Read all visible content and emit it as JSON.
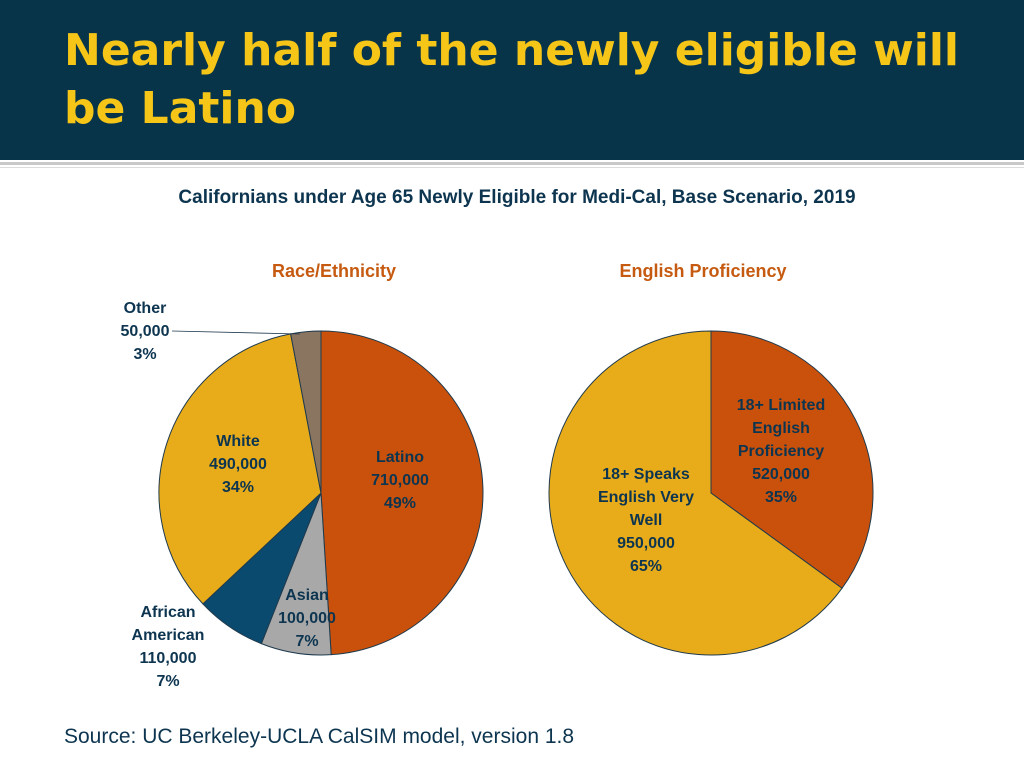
{
  "slide": {
    "title": "Nearly half of the newly eligible will be Latino",
    "subtitle": "Californians under Age 65 Newly Eligible for Medi-Cal, Base Scenario, 2019",
    "source": "Source: UC Berkeley-UCLA CalSIM model, version 1.8"
  },
  "colors": {
    "title_bar": "#08344a",
    "title_text": "#f5c518",
    "latino": "#c9510c",
    "white": "#e8ac1a",
    "asian": "#a8a8a8",
    "african_american": "#0b4a6f",
    "other": "#8a7560",
    "limited_english": "#c9510c",
    "speaks_english": "#e8ac1a"
  },
  "chart_data": [
    {
      "type": "pie",
      "title": "Race/Ethnicity",
      "slices": [
        {
          "key": "latino",
          "lines": [
            "Latino",
            "710,000",
            "49%"
          ],
          "value": 710000,
          "percent": 49
        },
        {
          "key": "asian",
          "lines": [
            "Asian",
            "100,000",
            "7%"
          ],
          "value": 100000,
          "percent": 7
        },
        {
          "key": "african_american",
          "lines": [
            "African",
            "American",
            "110,000",
            "7%"
          ],
          "value": 110000,
          "percent": 7
        },
        {
          "key": "white",
          "lines": [
            "White",
            "490,000",
            "34%"
          ],
          "value": 490000,
          "percent": 34
        },
        {
          "key": "other",
          "lines": [
            "Other",
            "50,000",
            "3%"
          ],
          "value": 50000,
          "percent": 3
        }
      ]
    },
    {
      "type": "pie",
      "title": "English Proficiency",
      "slices": [
        {
          "key": "limited_english",
          "lines": [
            "18+ Limited",
            "English",
            "Proficiency",
            "520,000",
            "35%"
          ],
          "value": 520000,
          "percent": 35
        },
        {
          "key": "speaks_english",
          "lines": [
            "18+ Speaks",
            "English Very",
            "Well",
            "950,000",
            "65%"
          ],
          "value": 950000,
          "percent": 65
        }
      ]
    }
  ]
}
